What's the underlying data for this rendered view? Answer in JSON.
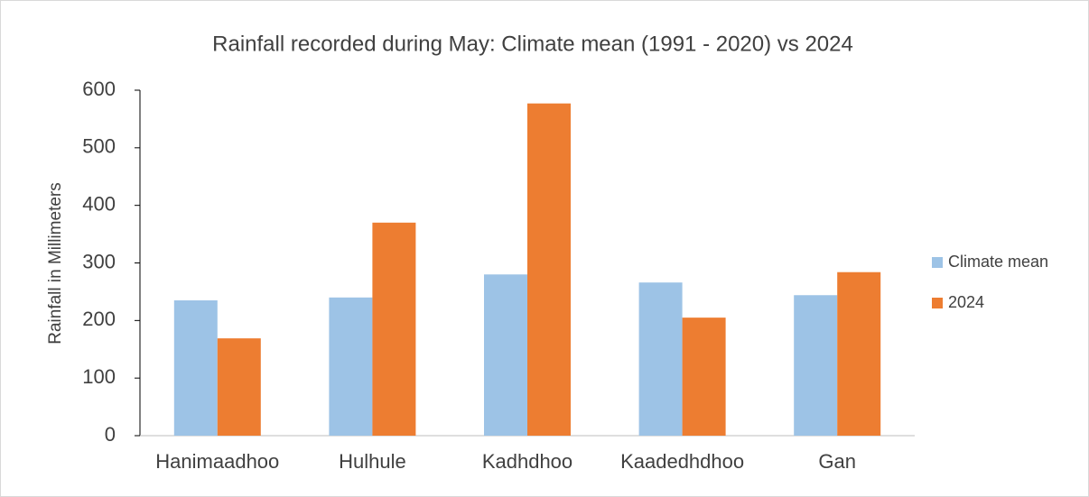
{
  "chart_data": {
    "type": "bar",
    "title": "Rainfall recorded during May: Climate mean (1991 - 2020) vs 2024",
    "y_label": "Rainfall in Millimeters",
    "categories": [
      "Hanimaadhoo",
      "Hulhule",
      "Kadhdhoo",
      "Kaadedhdhoo",
      "Gan"
    ],
    "series": [
      {
        "name": "Climate mean",
        "color": "#9dc3e6",
        "values": [
          235,
          240,
          280,
          266,
          244
        ]
      },
      {
        "name": "2024",
        "color": "#ed7d31",
        "values": [
          169,
          370,
          577,
          205,
          284
        ]
      }
    ],
    "ylim": [
      0,
      600
    ],
    "yticks": [
      0,
      100,
      200,
      300,
      400,
      500,
      600
    ],
    "grid": false,
    "legend": "right"
  }
}
